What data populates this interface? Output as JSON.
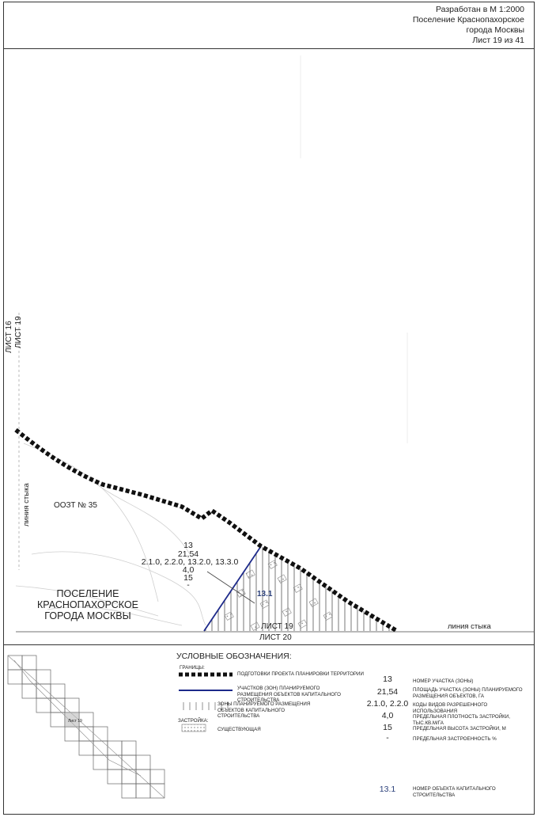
{
  "header": {
    "line1": "Разработан в М 1:2000",
    "line2": "Поселение Краснопахорское",
    "line3": "города Москвы",
    "line4": "Лист 19 из 41"
  },
  "map": {
    "sheet_left_top": "ЛИСТ 16",
    "sheet_left_bottom": "ЛИСТ 19",
    "junction_left": "линия стыка",
    "ozt_label": "ООЗТ № 35",
    "zone": {
      "number": "13",
      "area": "21,54",
      "codes": "2.1.0, 2.2.0, 13.2.0, 13.3.0",
      "density": "4,0",
      "height": "15",
      "coverage": "-"
    },
    "object_number": "13.1",
    "settlement_line1": "ПОСЕЛЕНИЕ",
    "settlement_line2": "КРАСНОПАХОРСКОЕ",
    "settlement_line3": "ГОРОДА МОСКВЫ",
    "sheet_bottom_top": "ЛИСТ 19",
    "sheet_bottom": "ЛИСТ 20",
    "junction_bottom": "линия стыка"
  },
  "legend": {
    "title": "УСЛОВНЫЕ ОБОЗНАЧЕНИЯ:",
    "borders_heading": "ГРАНИЦЫ:",
    "item_project_border": "ПОДГОТОВКИ ПРОЕКТА ПЛАНИРОВКИ ТЕРРИТОРИИ",
    "item_plots": "УЧАСТКОВ (ЗОН) ПЛАНИРУЕМОГО РАЗМЕЩЕНИЯ ОБЪЕКТОВ КАПИТАЛЬНОГО СТРОИТЕЛЬСТВА",
    "item_zones": "ЗОНЫ ПЛАНИРУЕМОГО РАЗМЕЩЕНИЯ ОБЪЕКТОВ КАПИТАЛЬНОГО СТРОИТЕЛЬСТВА",
    "buildings_heading": "ЗАСТРОЙКА:",
    "item_existing": "СУЩЕСТВУЮЩАЯ",
    "rows": [
      {
        "value": "13",
        "desc": "НОМЕР УЧАСТКА (ЗОНЫ)"
      },
      {
        "value": "21,54",
        "desc": "ПЛОЩАДЬ УЧАСТКА (ЗОНЫ) ПЛАНИРУЕМОГО РАЗМЕЩЕНИЯ ОБЪЕКТОВ, ГА"
      },
      {
        "value": "2.1.0, 2.2.0",
        "desc": "КОДЫ ВИДОВ РАЗРЕШЕННОГО ИСПОЛЬЗОВАНИЯ"
      },
      {
        "value": "4,0",
        "desc": "ПРЕДЕЛЬНАЯ ПЛОТНОСТЬ ЗАСТРОЙКИ, ТЫС.КВ.М/ГА"
      },
      {
        "value": "15",
        "desc": "ПРЕДЕЛЬНАЯ ВЫСОТА ЗАСТРОЙКИ, М"
      },
      {
        "value": "-",
        "desc": "ПРЕДЕЛЬНАЯ ЗАСТРОЕННОСТЬ %"
      }
    ],
    "object_value": "13.1",
    "object_desc": "НОМЕР ОБЪЕКТА КАПИТАЛЬНОГО СТРОИТЕЛЬСТВА",
    "index_sheets": [
      "Лист 19"
    ]
  },
  "colors": {
    "boundary": "#101010",
    "plot_line": "#1d2a8a",
    "object_number": "#2a3f7a"
  }
}
